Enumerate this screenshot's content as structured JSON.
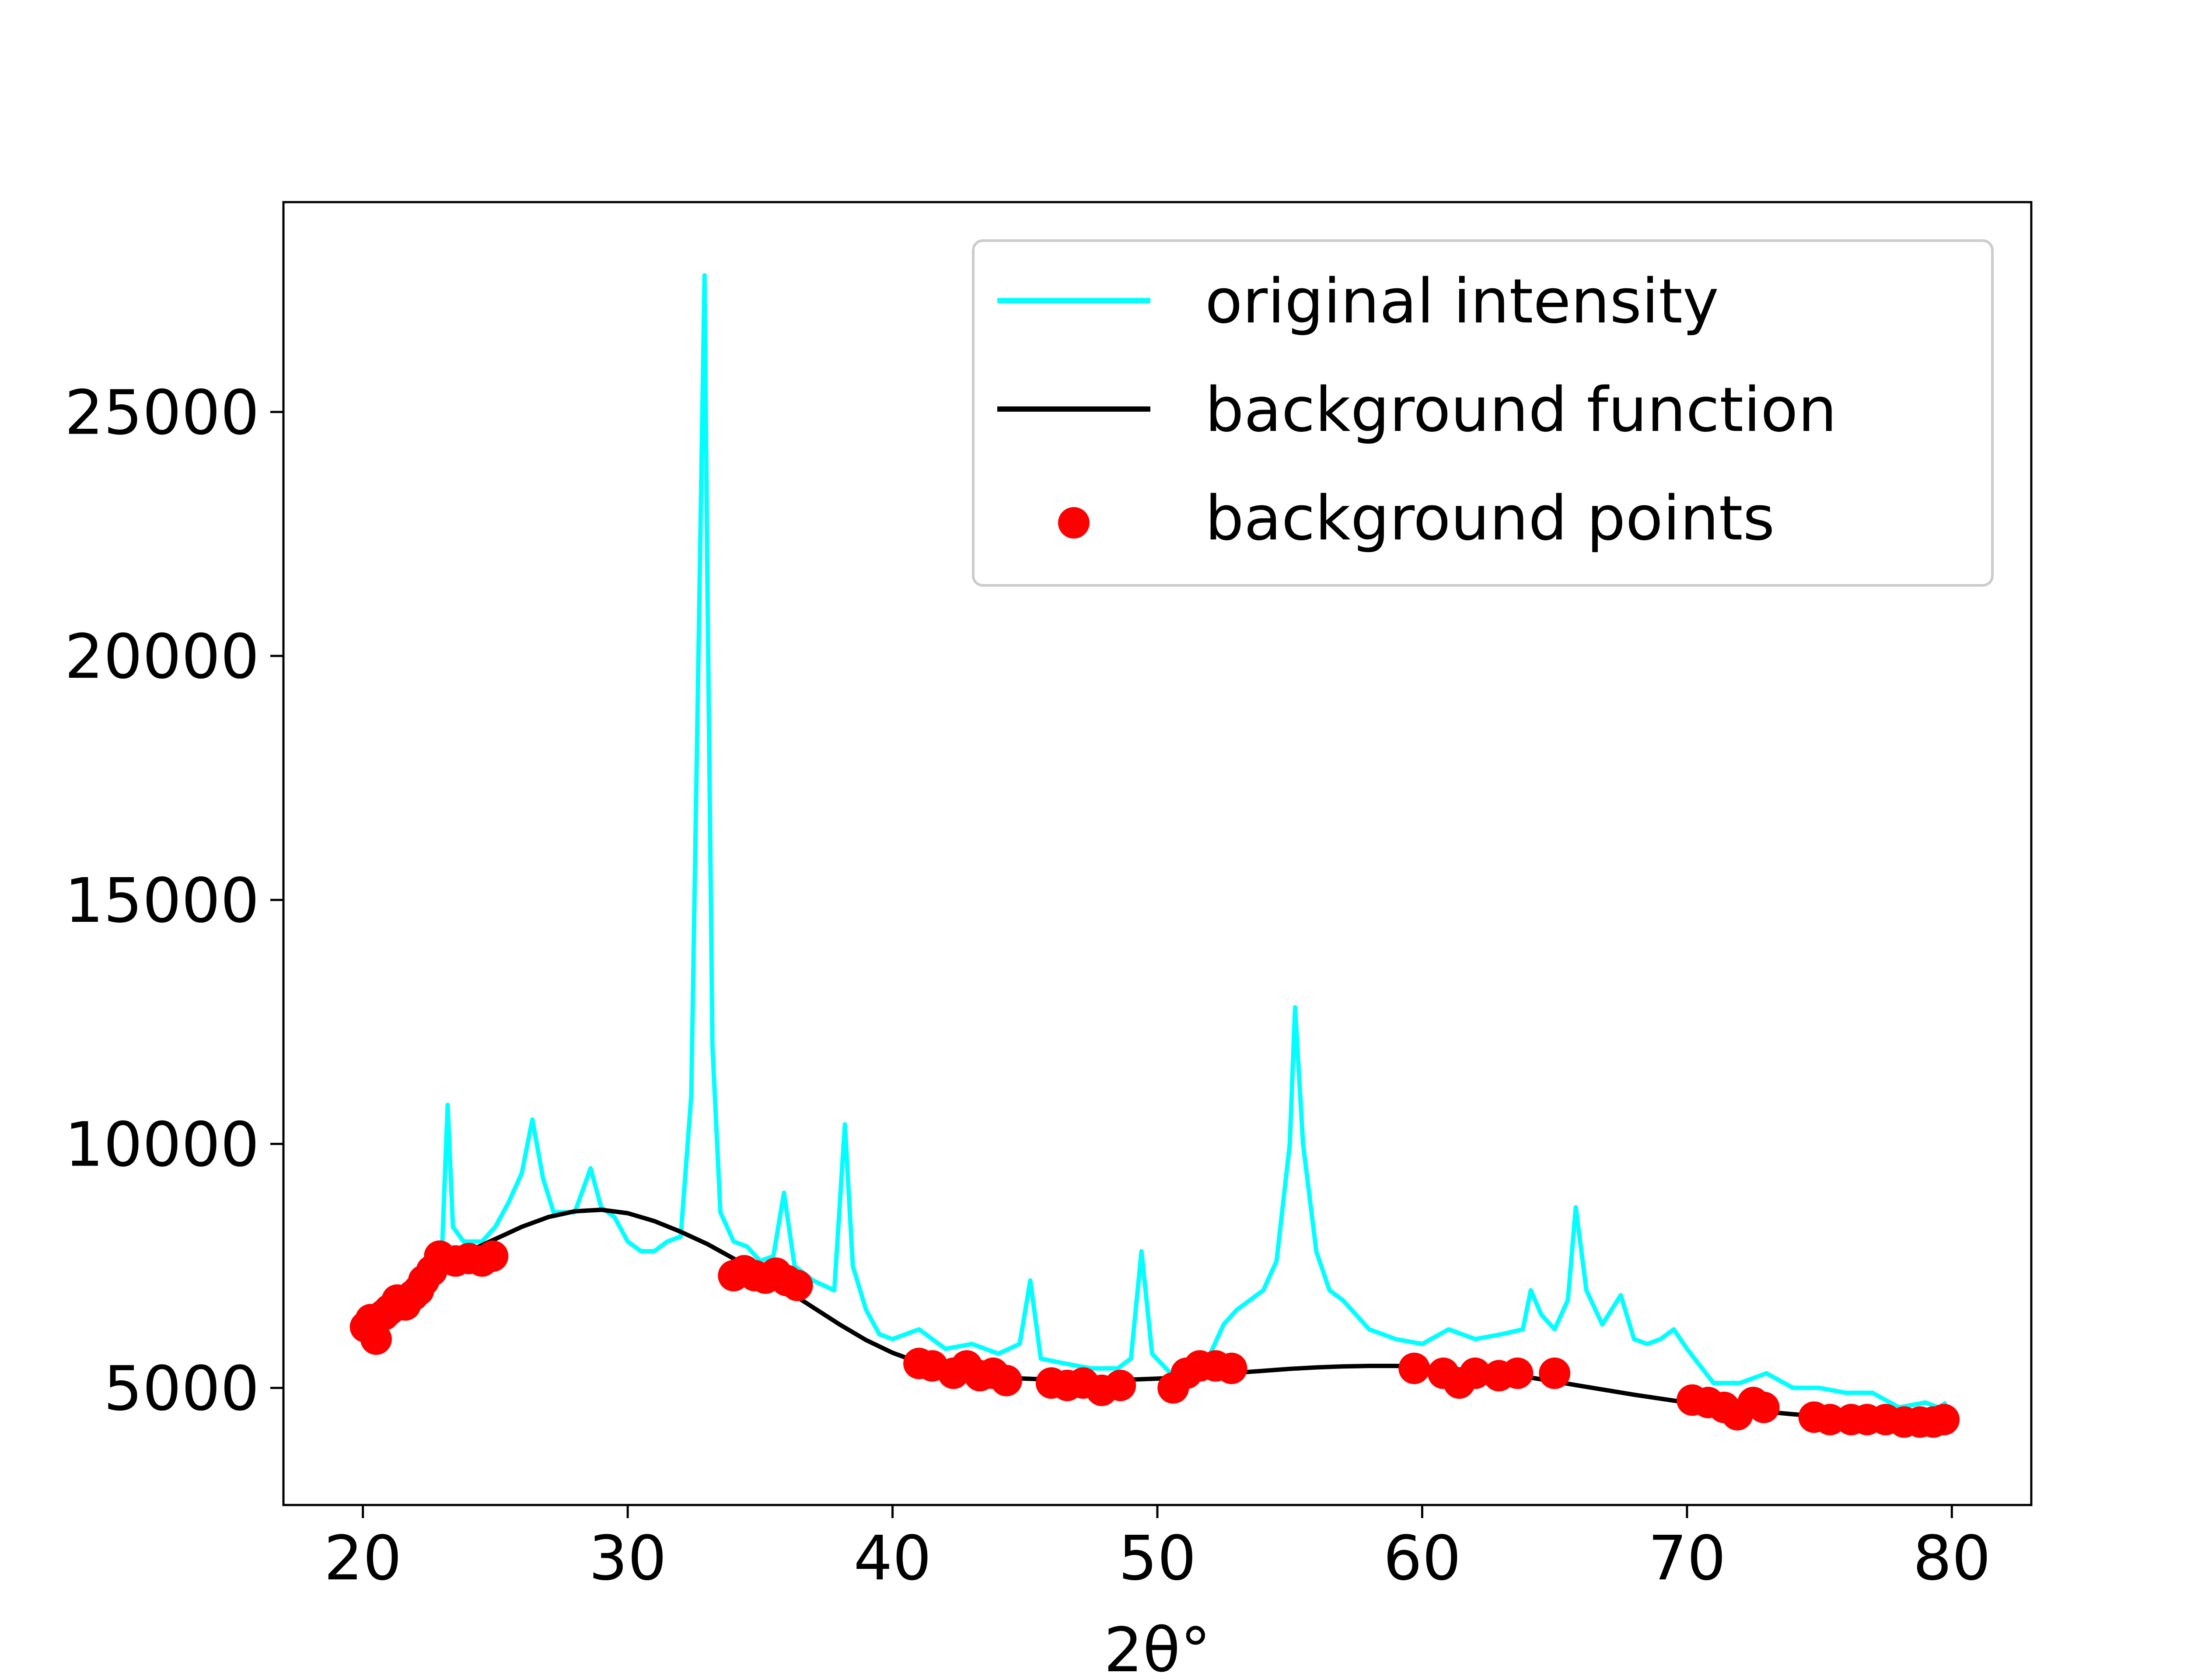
{
  "chart_data": {
    "type": "line",
    "xlabel": "2θ°",
    "ylabel": "",
    "title": "",
    "xlim": [
      17,
      83
    ],
    "ylim": [
      2600,
      29300
    ],
    "x_ticks": [
      20,
      30,
      40,
      50,
      60,
      70,
      80
    ],
    "y_ticks": [
      5000,
      10000,
      15000,
      20000,
      25000
    ],
    "grid": false,
    "legend_position": "top-right",
    "colors": {
      "original": "#00ffff",
      "background_function": "#000000",
      "background_points": "#ff0000"
    },
    "series": [
      {
        "name": "original intensity",
        "style": "line",
        "x": [
          20.0,
          20.5,
          21.0,
          21.5,
          22.0,
          22.5,
          23.0,
          23.2,
          23.4,
          23.8,
          24.5,
          25.0,
          25.5,
          26.0,
          26.4,
          26.8,
          27.2,
          28.0,
          28.6,
          29.0,
          29.5,
          30.0,
          30.5,
          31.0,
          31.5,
          32.0,
          32.4,
          32.7,
          32.9,
          33.0,
          33.2,
          33.5,
          34.0,
          34.5,
          35.0,
          35.5,
          35.9,
          36.3,
          37.0,
          37.8,
          38.2,
          38.5,
          39.0,
          39.5,
          40.0,
          40.5,
          41.0,
          42.0,
          43.0,
          44.0,
          44.8,
          45.2,
          45.6,
          46.5,
          47.5,
          48.5,
          49.0,
          49.4,
          49.8,
          50.5,
          51.5,
          52.0,
          52.5,
          53.0,
          53.5,
          54.0,
          54.5,
          55.0,
          55.2,
          55.5,
          56.0,
          56.5,
          57.0,
          57.5,
          58.0,
          59.0,
          60.0,
          61.0,
          62.0,
          63.0,
          63.8,
          64.1,
          64.5,
          65.0,
          65.5,
          65.8,
          66.2,
          66.8,
          67.5,
          68.0,
          68.5,
          69.0,
          69.5,
          70.0,
          71.0,
          72.0,
          73.0,
          74.0,
          75.0,
          76.0,
          77.0,
          78.0,
          79.0,
          79.5,
          79.8
        ],
        "y": [
          6200,
          6500,
          6700,
          7000,
          7300,
          7700,
          8000,
          10800,
          8300,
          8000,
          8000,
          8300,
          8800,
          9400,
          10500,
          9300,
          8600,
          8600,
          9500,
          8700,
          8500,
          8000,
          7800,
          7800,
          8000,
          8100,
          11000,
          21000,
          27800,
          22000,
          12000,
          8600,
          8000,
          7900,
          7600,
          7700,
          9000,
          7500,
          7200,
          7000,
          10400,
          7500,
          6600,
          6100,
          6000,
          6100,
          6200,
          5800,
          5900,
          5700,
          5900,
          7200,
          5600,
          5500,
          5400,
          5400,
          5600,
          7800,
          5700,
          5300,
          5300,
          5700,
          6300,
          6600,
          6800,
          7000,
          7600,
          10000,
          12800,
          10000,
          7800,
          7000,
          6800,
          6500,
          6200,
          6000,
          5900,
          6200,
          6000,
          6100,
          6200,
          7000,
          6500,
          6200,
          6800,
          8700,
          7000,
          6300,
          6900,
          6000,
          5900,
          6000,
          6200,
          5800,
          5100,
          5100,
          5300,
          5000,
          5000,
          4900,
          4900,
          4600,
          4700,
          4600,
          4700
        ]
      },
      {
        "name": "background function",
        "style": "line",
        "x": [
          20,
          21,
          22,
          23,
          24,
          25,
          26,
          27,
          28,
          29,
          30,
          31,
          32,
          33,
          34,
          35,
          36,
          37,
          38,
          39,
          40,
          41,
          42,
          43,
          44,
          45,
          46,
          47,
          48,
          49,
          50,
          51,
          52,
          53,
          54,
          55,
          56,
          57,
          58,
          59,
          60,
          61,
          62,
          63,
          64,
          65,
          66,
          67,
          68,
          69,
          70,
          71,
          72,
          73,
          74,
          75,
          76,
          77,
          78,
          79,
          80
        ],
        "y": [
          6300,
          6750,
          7150,
          7500,
          7800,
          8050,
          8300,
          8500,
          8620,
          8650,
          8580,
          8420,
          8200,
          7950,
          7650,
          7350,
          7000,
          6650,
          6300,
          5980,
          5720,
          5520,
          5380,
          5280,
          5220,
          5190,
          5170,
          5160,
          5160,
          5170,
          5190,
          5220,
          5260,
          5310,
          5350,
          5390,
          5420,
          5440,
          5450,
          5450,
          5440,
          5400,
          5350,
          5290,
          5220,
          5130,
          5040,
          4950,
          4860,
          4780,
          4700,
          4630,
          4570,
          4510,
          4460,
          4420,
          4390,
          4370,
          4350,
          4340,
          4330
        ]
      },
      {
        "name": "background points",
        "style": "scatter",
        "x": [
          20.1,
          20.3,
          20.5,
          20.8,
          21.0,
          21.3,
          21.6,
          21.9,
          22.1,
          22.3,
          22.6,
          22.9,
          23.5,
          24.0,
          24.5,
          24.9,
          34.0,
          34.4,
          34.8,
          35.2,
          35.6,
          36.0,
          36.4,
          41.0,
          41.5,
          42.3,
          42.8,
          43.3,
          43.8,
          44.3,
          46.0,
          46.6,
          47.2,
          47.9,
          48.6,
          50.6,
          51.1,
          51.6,
          52.2,
          52.8,
          59.7,
          60.8,
          61.4,
          62.0,
          62.9,
          63.6,
          65.0,
          70.2,
          70.8,
          71.4,
          71.9,
          72.5,
          72.9,
          74.8,
          75.4,
          76.2,
          76.8,
          77.5,
          78.2,
          78.8,
          79.3,
          79.7
        ],
        "y": [
          6250,
          6400,
          6000,
          6500,
          6600,
          6800,
          6700,
          6900,
          7000,
          7200,
          7400,
          7700,
          7600,
          7650,
          7600,
          7700,
          7300,
          7400,
          7300,
          7250,
          7350,
          7200,
          7100,
          5500,
          5450,
          5300,
          5450,
          5250,
          5300,
          5150,
          5100,
          5050,
          5100,
          4950,
          5050,
          5000,
          5300,
          5450,
          5450,
          5400,
          5400,
          5300,
          5100,
          5300,
          5250,
          5300,
          5300,
          4750,
          4700,
          4600,
          4450,
          4700,
          4600,
          4400,
          4350,
          4350,
          4350,
          4350,
          4300,
          4300,
          4300,
          4350
        ]
      }
    ]
  }
}
